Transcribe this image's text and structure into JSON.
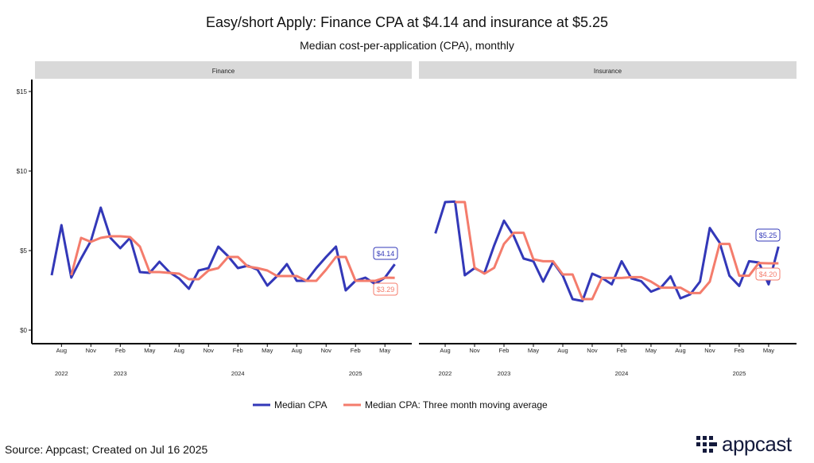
{
  "title": "Easy/short Apply: Finance CPA at $4.14 and insurance at $5.25",
  "subtitle": "Median cost-per-application (CPA), monthly",
  "source": "Source: Appcast; Created on Jul 16 2025",
  "logo_text": "appcast",
  "colors": {
    "median": "#3338b8",
    "moving_average": "#f47c6c",
    "strip": "#d9d9d9"
  },
  "legend": [
    {
      "label": "Median CPA",
      "color": "#3338b8"
    },
    {
      "label": "Median CPA: Three month moving average",
      "color": "#f47c6c"
    }
  ],
  "chart_data": [
    {
      "type": "line",
      "panel": "Finance",
      "x_start": "2022-07",
      "x_end": "2025-06",
      "frequency": "monthly",
      "ylim": [
        0,
        15
      ],
      "y_ticks": [
        "$0",
        "$5",
        "$10",
        "$15"
      ],
      "y_tick_values": [
        0,
        5,
        10,
        15
      ],
      "x_tick_labels": [
        "Aug",
        "Nov",
        "Feb",
        "May",
        "Aug",
        "Nov",
        "Feb",
        "May",
        "Aug",
        "Nov",
        "Feb",
        "May"
      ],
      "x_tick_index": [
        1,
        4,
        7,
        10,
        13,
        16,
        19,
        22,
        25,
        28,
        31,
        34
      ],
      "year_labels": [
        "2022",
        "2023",
        "2024",
        "2025"
      ],
      "year_index": [
        1,
        7,
        19,
        31
      ],
      "series": [
        {
          "name": "Median CPA",
          "values": [
            3.45,
            6.6,
            3.3,
            4.5,
            5.6,
            7.7,
            5.8,
            5.15,
            5.8,
            3.65,
            3.6,
            4.3,
            3.65,
            3.25,
            2.6,
            3.75,
            3.9,
            5.25,
            4.65,
            3.9,
            4.05,
            3.8,
            2.8,
            3.4,
            4.15,
            3.1,
            3.1,
            3.9,
            4.6,
            5.25,
            2.5,
            3.1,
            3.3,
            2.9,
            3.3,
            4.14
          ],
          "end_label": "$4.14"
        },
        {
          "name": "Median CPA: Three month moving average",
          "values": [
            null,
            null,
            3.45,
            5.8,
            5.55,
            5.8,
            5.9,
            5.9,
            5.85,
            5.25,
            3.65,
            3.65,
            3.6,
            3.55,
            3.2,
            3.2,
            3.75,
            3.9,
            4.6,
            4.6,
            4.0,
            3.9,
            3.75,
            3.4,
            3.4,
            3.4,
            3.1,
            3.1,
            3.8,
            4.6,
            4.6,
            3.1,
            3.1,
            3.1,
            3.3,
            3.29
          ],
          "end_label": "$3.29"
        }
      ]
    },
    {
      "type": "line",
      "panel": "Insurance",
      "x_start": "2022-07",
      "x_end": "2025-06",
      "frequency": "monthly",
      "ylim": [
        0,
        15
      ],
      "x_tick_labels": [
        "Aug",
        "Nov",
        "Feb",
        "May",
        "Aug",
        "Nov",
        "Feb",
        "May",
        "Aug",
        "Nov",
        "Feb",
        "May"
      ],
      "x_tick_index": [
        1,
        4,
        7,
        10,
        13,
        16,
        19,
        22,
        25,
        28,
        31,
        34
      ],
      "year_labels": [
        "2022",
        "2023",
        "2024",
        "2025"
      ],
      "year_index": [
        1,
        7,
        19,
        31
      ],
      "series": [
        {
          "name": "Median CPA",
          "values": [
            6.08,
            8.05,
            8.08,
            3.45,
            3.9,
            3.58,
            5.33,
            6.88,
            5.92,
            4.5,
            4.33,
            3.05,
            4.28,
            3.42,
            1.95,
            1.83,
            3.55,
            3.28,
            2.88,
            4.33,
            3.25,
            3.08,
            2.42,
            2.67,
            3.38,
            2.0,
            2.25,
            3.05,
            6.42,
            5.5,
            3.42,
            2.78,
            4.33,
            4.25,
            2.88,
            5.25
          ],
          "end_label": "$5.25"
        },
        {
          "name": "Median CPA: Three month moving average",
          "values": [
            null,
            null,
            8.05,
            8.05,
            3.92,
            3.55,
            3.92,
            5.42,
            6.12,
            6.12,
            4.45,
            4.33,
            4.33,
            3.5,
            3.5,
            1.95,
            1.95,
            3.28,
            3.28,
            3.28,
            3.33,
            3.33,
            3.05,
            2.67,
            2.67,
            2.67,
            2.33,
            2.33,
            3.05,
            5.42,
            5.42,
            3.42,
            3.42,
            4.22,
            4.2,
            4.2
          ],
          "end_label": "$4.20"
        }
      ]
    }
  ]
}
